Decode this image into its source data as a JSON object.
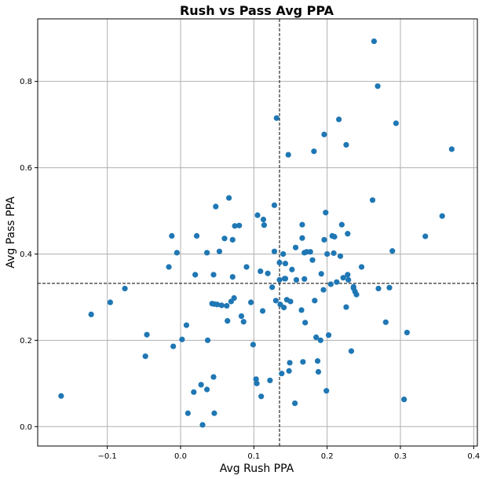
{
  "chart_data": {
    "type": "scatter",
    "title": "Rush vs Pass Avg PPA",
    "xlabel": "Avg Rush PPA",
    "ylabel": "Avg Pass PPA",
    "xlim": [
      -0.195,
      0.405
    ],
    "ylim": [
      -0.045,
      0.945
    ],
    "xticks": [
      -0.1,
      0.0,
      0.1,
      0.2,
      0.3,
      0.4
    ],
    "xtick_labels": [
      "−0.1",
      "0.0",
      "0.1",
      "0.2",
      "0.3",
      "0.4"
    ],
    "yticks": [
      0.0,
      0.2,
      0.4,
      0.6,
      0.8
    ],
    "ytick_labels": [
      "0.0",
      "0.2",
      "0.4",
      "0.6",
      "0.8"
    ],
    "grid": true,
    "point_color": "#1f77b4",
    "reference_lines": {
      "x_mean": 0.135,
      "y_mean": 0.332
    },
    "x": [
      -0.163,
      -0.122,
      -0.096,
      -0.076,
      -0.048,
      -0.046,
      -0.016,
      -0.012,
      -0.01,
      -0.005,
      0.002,
      0.008,
      0.01,
      0.018,
      0.02,
      0.022,
      0.028,
      0.03,
      0.036,
      0.036,
      0.037,
      0.043,
      0.045,
      0.045,
      0.046,
      0.046,
      0.048,
      0.05,
      0.053,
      0.056,
      0.06,
      0.063,
      0.064,
      0.066,
      0.069,
      0.071,
      0.071,
      0.073,
      0.074,
      0.08,
      0.083,
      0.086,
      0.09,
      0.096,
      0.099,
      0.103,
      0.104,
      0.105,
      0.109,
      0.11,
      0.112,
      0.113,
      0.114,
      0.119,
      0.122,
      0.125,
      0.128,
      0.128,
      0.13,
      0.131,
      0.135,
      0.135,
      0.136,
      0.138,
      0.14,
      0.141,
      0.142,
      0.143,
      0.143,
      0.145,
      0.147,
      0.148,
      0.149,
      0.15,
      0.152,
      0.156,
      0.157,
      0.158,
      0.165,
      0.166,
      0.166,
      0.167,
      0.169,
      0.169,
      0.17,
      0.172,
      0.177,
      0.18,
      0.182,
      0.183,
      0.185,
      0.187,
      0.188,
      0.191,
      0.192,
      0.195,
      0.196,
      0.196,
      0.198,
      0.199,
      0.2,
      0.202,
      0.205,
      0.207,
      0.209,
      0.21,
      0.213,
      0.216,
      0.218,
      0.22,
      0.222,
      0.226,
      0.226,
      0.228,
      0.228,
      0.229,
      0.233,
      0.236,
      0.236,
      0.238,
      0.24,
      0.247,
      0.262,
      0.264,
      0.269,
      0.27,
      0.28,
      0.285,
      0.289,
      0.294,
      0.305,
      0.309,
      0.334,
      0.357,
      0.37
    ],
    "y": [
      0.071,
      0.26,
      0.288,
      0.32,
      0.163,
      0.213,
      0.37,
      0.442,
      0.186,
      0.403,
      0.202,
      0.235,
      0.031,
      0.08,
      0.352,
      0.442,
      0.097,
      0.004,
      0.086,
      0.403,
      0.2,
      0.285,
      0.115,
      0.352,
      0.284,
      0.031,
      0.51,
      0.283,
      0.406,
      0.281,
      0.436,
      0.28,
      0.245,
      0.53,
      0.29,
      0.433,
      0.347,
      0.298,
      0.465,
      0.466,
      0.256,
      0.243,
      0.37,
      0.288,
      0.19,
      0.11,
      0.1,
      0.49,
      0.36,
      0.07,
      0.268,
      0.48,
      0.467,
      0.355,
      0.107,
      0.323,
      0.513,
      0.406,
      0.292,
      0.715,
      0.34,
      0.38,
      0.283,
      0.123,
      0.4,
      0.276,
      0.343,
      0.378,
      0.343,
      0.294,
      0.63,
      0.129,
      0.148,
      0.29,
      0.364,
      0.054,
      0.415,
      0.34,
      0.27,
      0.468,
      0.437,
      0.15,
      0.342,
      0.403,
      0.241,
      0.405,
      0.405,
      0.386,
      0.638,
      0.292,
      0.207,
      0.152,
      0.127,
      0.2,
      0.354,
      0.317,
      0.677,
      0.433,
      0.496,
      0.083,
      0.4,
      0.212,
      0.33,
      0.442,
      0.402,
      0.44,
      0.335,
      0.712,
      0.395,
      0.468,
      0.345,
      0.653,
      0.277,
      0.447,
      0.352,
      0.34,
      0.175,
      0.321,
      0.324,
      0.313,
      0.306,
      0.37,
      0.525,
      0.893,
      0.789,
      0.32,
      0.242,
      0.322,
      0.407,
      0.703,
      0.063,
      0.218,
      0.441,
      0.488,
      0.643
    ]
  }
}
